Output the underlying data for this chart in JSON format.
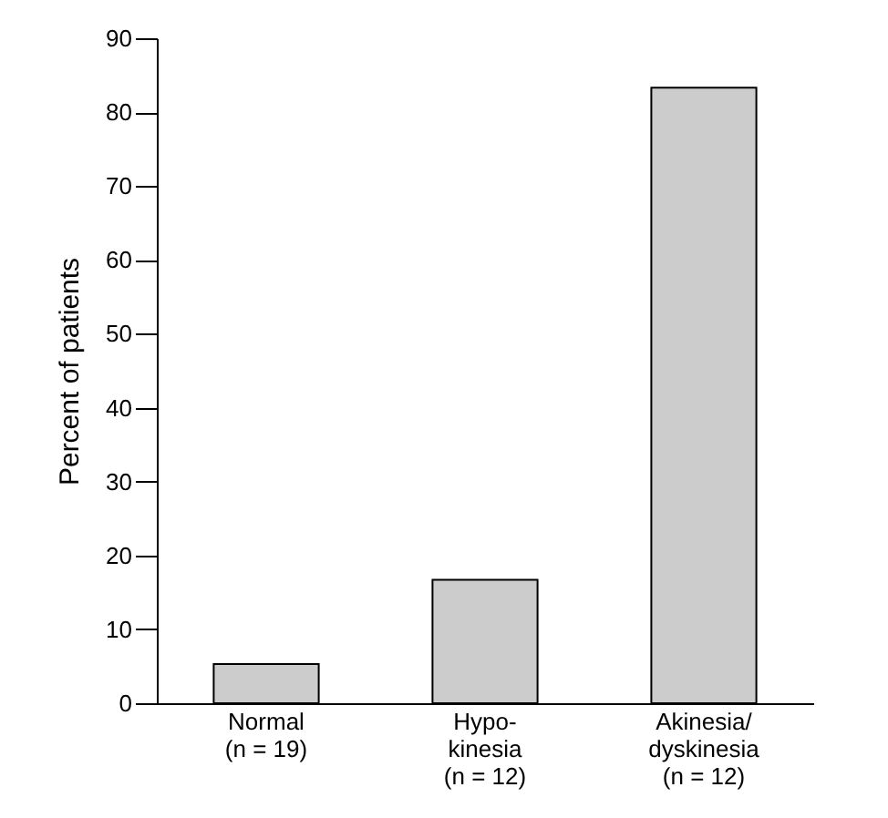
{
  "chart_data": {
    "type": "bar",
    "ylabel": "Percent of patients",
    "categories": [
      "Normal\n(n = 19)",
      "Hypo-\nkinesia\n(n = 12)",
      "Akinesia/\ndyskinesia\n(n = 12)"
    ],
    "values": [
      5.3,
      16.7,
      83.3
    ],
    "color": "#cccccc",
    "ylim": [
      0,
      90
    ],
    "yticks": [
      0,
      10,
      20,
      30,
      40,
      50,
      60,
      70,
      80,
      90
    ],
    "grid": false
  }
}
